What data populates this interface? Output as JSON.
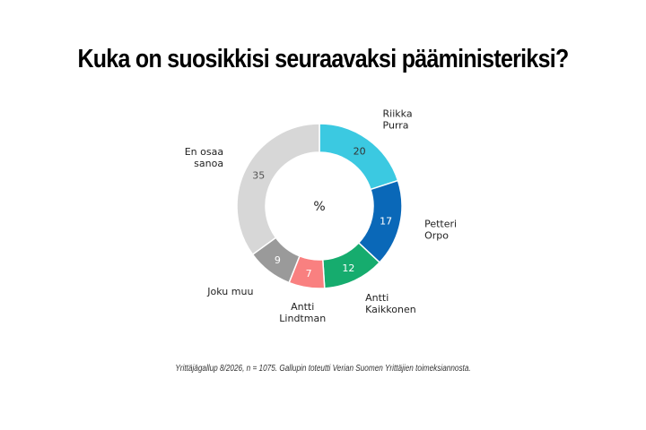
{
  "chart_data": {
    "type": "pie",
    "title": "Kuka on suosikkisi seuraavaksi pääministeriksi?",
    "center_label": "%",
    "slices": [
      {
        "label": [
          "Riikka",
          "Purra"
        ],
        "value": 20,
        "color": "#3bc9e1",
        "label_color": "#333333"
      },
      {
        "label": [
          "Petteri",
          "Orpo"
        ],
        "value": 17,
        "color": "#0a68b8",
        "label_color": "#ffffff"
      },
      {
        "label": [
          "Antti",
          "Kaikkonen"
        ],
        "value": 12,
        "color": "#16ac6e",
        "label_color": "#ffffff"
      },
      {
        "label": [
          "Antti",
          "Lindtman"
        ],
        "value": 7,
        "color": "#f98080",
        "label_color": "#ffffff"
      },
      {
        "label": [
          "Joku muu"
        ],
        "value": 9,
        "color": "#9a9a9a",
        "label_color": "#ffffff"
      },
      {
        "label": [
          "En osaa",
          "sanoa"
        ],
        "value": 35,
        "color": "#d7d7d7",
        "label_color": "#555555"
      }
    ]
  },
  "footnote": "Yrittäjägallup 8/2026, n = 1075. Gallupin toteutti Verian Suomen Yrittäjien toimeksiannosta."
}
